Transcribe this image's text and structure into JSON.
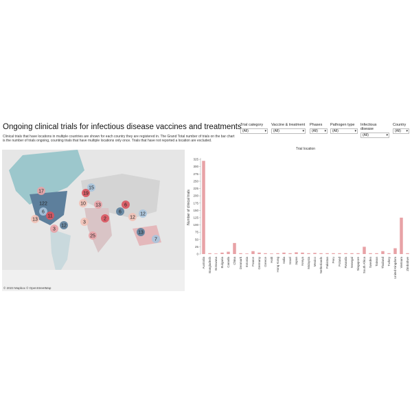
{
  "header": {
    "title": "Ongoing clinical trials for infectious disease vaccines and treatments",
    "description": "Clinical trials that have locations in multiple countries are shown for each country they are registered in. The Grand Total number of trials on the bar chart is the number of trials ongoing, counting trials that have multiple locations only once. Trials that have not reported a location are excluded."
  },
  "filters": [
    {
      "label": "Trial category",
      "value": "(All)"
    },
    {
      "label": "Vaccine & treatment",
      "value": "(All)"
    },
    {
      "label": "Phases",
      "value": "(All)"
    },
    {
      "label": "Pathogen type",
      "value": "(All)"
    },
    {
      "label": "Infectious disease",
      "value": "(All)"
    },
    {
      "label": "Country",
      "value": "(All)"
    }
  ],
  "map": {
    "credit": "© 2023 Mapbox © OpenStreetMap",
    "bubbles": [
      "17",
      "122",
      "6",
      "11",
      "13",
      "3",
      "12",
      "15",
      "19",
      "10",
      "13",
      "6",
      "12",
      "2",
      "3",
      "25",
      "13",
      "7",
      "6",
      "12"
    ]
  },
  "chart_data": {
    "type": "bar",
    "title": "Trial location",
    "y_label": "Number of clinical trials",
    "categories": [
      "Australia",
      "Bangladesh",
      "Botswana",
      "Bulgaria",
      "Canada",
      "China",
      "Denmark",
      "Estonia",
      "France",
      "Germany",
      "Greece",
      "Haiti",
      "Hong Kong",
      "India",
      "Israel",
      "Japan",
      "Kenya",
      "Malaysia",
      "Mexico",
      "Netherlands",
      "Pakistan",
      "Peru",
      "Poland",
      "Rwanda",
      "Senegal",
      "Singapore",
      "South Africa",
      "Sweden",
      "Taiwan",
      "Thailand",
      "Turkey",
      "United Kingdom",
      "Vietnam",
      "Zimbabwe"
    ],
    "values": [
      320,
      3,
      2,
      5,
      8,
      38,
      3,
      2,
      10,
      5,
      3,
      2,
      3,
      5,
      3,
      6,
      5,
      3,
      4,
      3,
      3,
      3,
      3,
      3,
      3,
      3,
      25,
      3,
      3,
      10,
      3,
      20,
      125,
      3
    ],
    "color": "#e8a2a6",
    "ylim": [
      0,
      330
    ],
    "yticks": [
      0,
      25,
      50,
      75,
      100,
      125,
      150,
      175,
      200,
      225,
      250,
      275,
      300,
      325
    ],
    "grid": false
  }
}
